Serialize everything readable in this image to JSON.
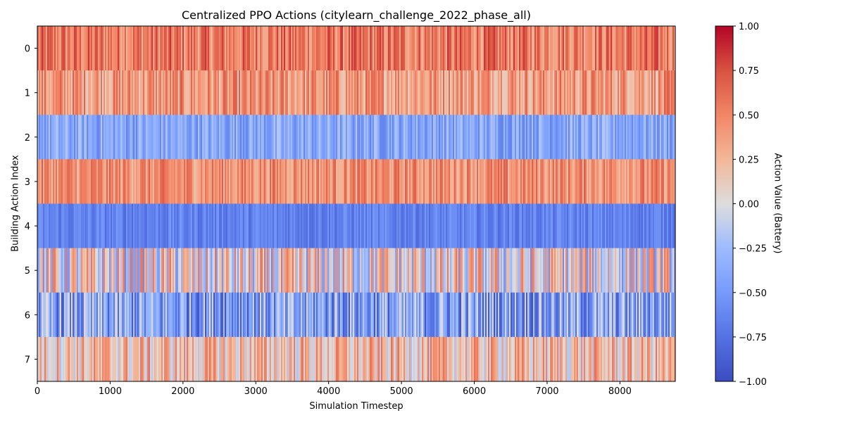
{
  "chart_data": {
    "type": "heatmap",
    "title": "Centralized PPO Actions (citylearn_challenge_2022_phase_all)",
    "xlabel": "Simulation Timestep",
    "ylabel": "Building Action Index",
    "xlim": [
      0,
      8760
    ],
    "x_ticks": [
      0,
      1000,
      2000,
      3000,
      4000,
      5000,
      6000,
      7000,
      8000
    ],
    "x_tick_labels": [
      "0",
      "1000",
      "2000",
      "3000",
      "4000",
      "5000",
      "6000",
      "7000",
      "8000"
    ],
    "rows": [
      "0",
      "1",
      "2",
      "3",
      "4",
      "5",
      "6",
      "7"
    ],
    "colormap": "coolwarm",
    "vmin": -1.0,
    "vmax": 1.0,
    "colorbar": {
      "label": "Action Value (Battery)",
      "ticks": [
        1.0,
        0.75,
        0.5,
        0.25,
        0.0,
        -0.25,
        -0.5,
        -0.75,
        -1.0
      ],
      "tick_labels": [
        "1.00",
        "0.75",
        "0.50",
        "0.25",
        "0.00",
        "−0.25",
        "−0.50",
        "−0.75",
        "−1.00"
      ]
    },
    "row_summary": [
      {
        "row": "0",
        "typical_mean": 0.55,
        "spread": 0.3
      },
      {
        "row": "1",
        "typical_mean": 0.4,
        "spread": 0.3
      },
      {
        "row": "2",
        "typical_mean": -0.4,
        "spread": 0.25
      },
      {
        "row": "3",
        "typical_mean": 0.45,
        "spread": 0.25
      },
      {
        "row": "4",
        "typical_mean": -0.65,
        "spread": 0.15
      },
      {
        "row": "5",
        "typical_mean": 0.0,
        "spread": 0.6
      },
      {
        "row": "6",
        "typical_mean": -0.45,
        "spread": 0.5
      },
      {
        "row": "7",
        "typical_mean": 0.2,
        "spread": 0.4
      }
    ]
  }
}
